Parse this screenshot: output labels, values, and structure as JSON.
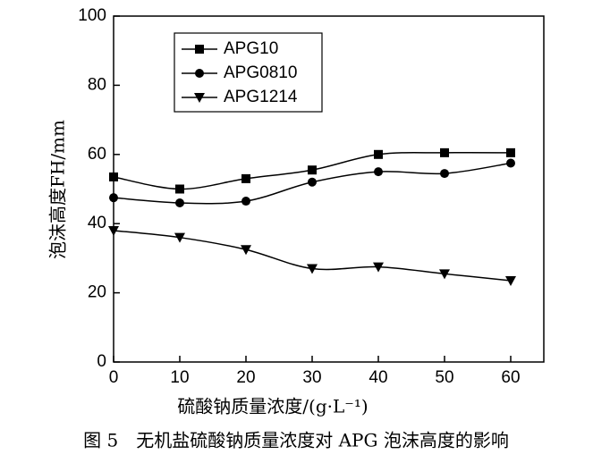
{
  "chart_data": {
    "type": "line",
    "caption": "图 5　无机盐硫酸钠质量浓度对 APG 泡沫高度的影响",
    "x_label": "硫酸钠质量浓度/(g·L⁻¹)",
    "y_label": "泡沫高度FH/mm",
    "x": [
      0,
      10,
      20,
      30,
      40,
      50,
      60
    ],
    "series": [
      {
        "name": "APG10",
        "color": "#000000",
        "marker": "square",
        "values": [
          53.5,
          50,
          53,
          55.5,
          60,
          60.5,
          60.5
        ]
      },
      {
        "name": "APG0810",
        "color": "#000000",
        "marker": "circle",
        "values": [
          47.5,
          46,
          46.5,
          52,
          55,
          54.5,
          57.5
        ]
      },
      {
        "name": "APG1214",
        "color": "#000000",
        "marker": "triangle-down",
        "values": [
          38,
          36,
          32.5,
          27,
          27.5,
          25.5,
          23.5
        ]
      }
    ],
    "xlim": [
      0,
      65
    ],
    "xticks": [
      0,
      10,
      20,
      30,
      40,
      50,
      60
    ],
    "ylim": [
      0,
      100
    ],
    "yticks": [
      0,
      20,
      40,
      60,
      80,
      100
    ],
    "legend": "upper left"
  }
}
